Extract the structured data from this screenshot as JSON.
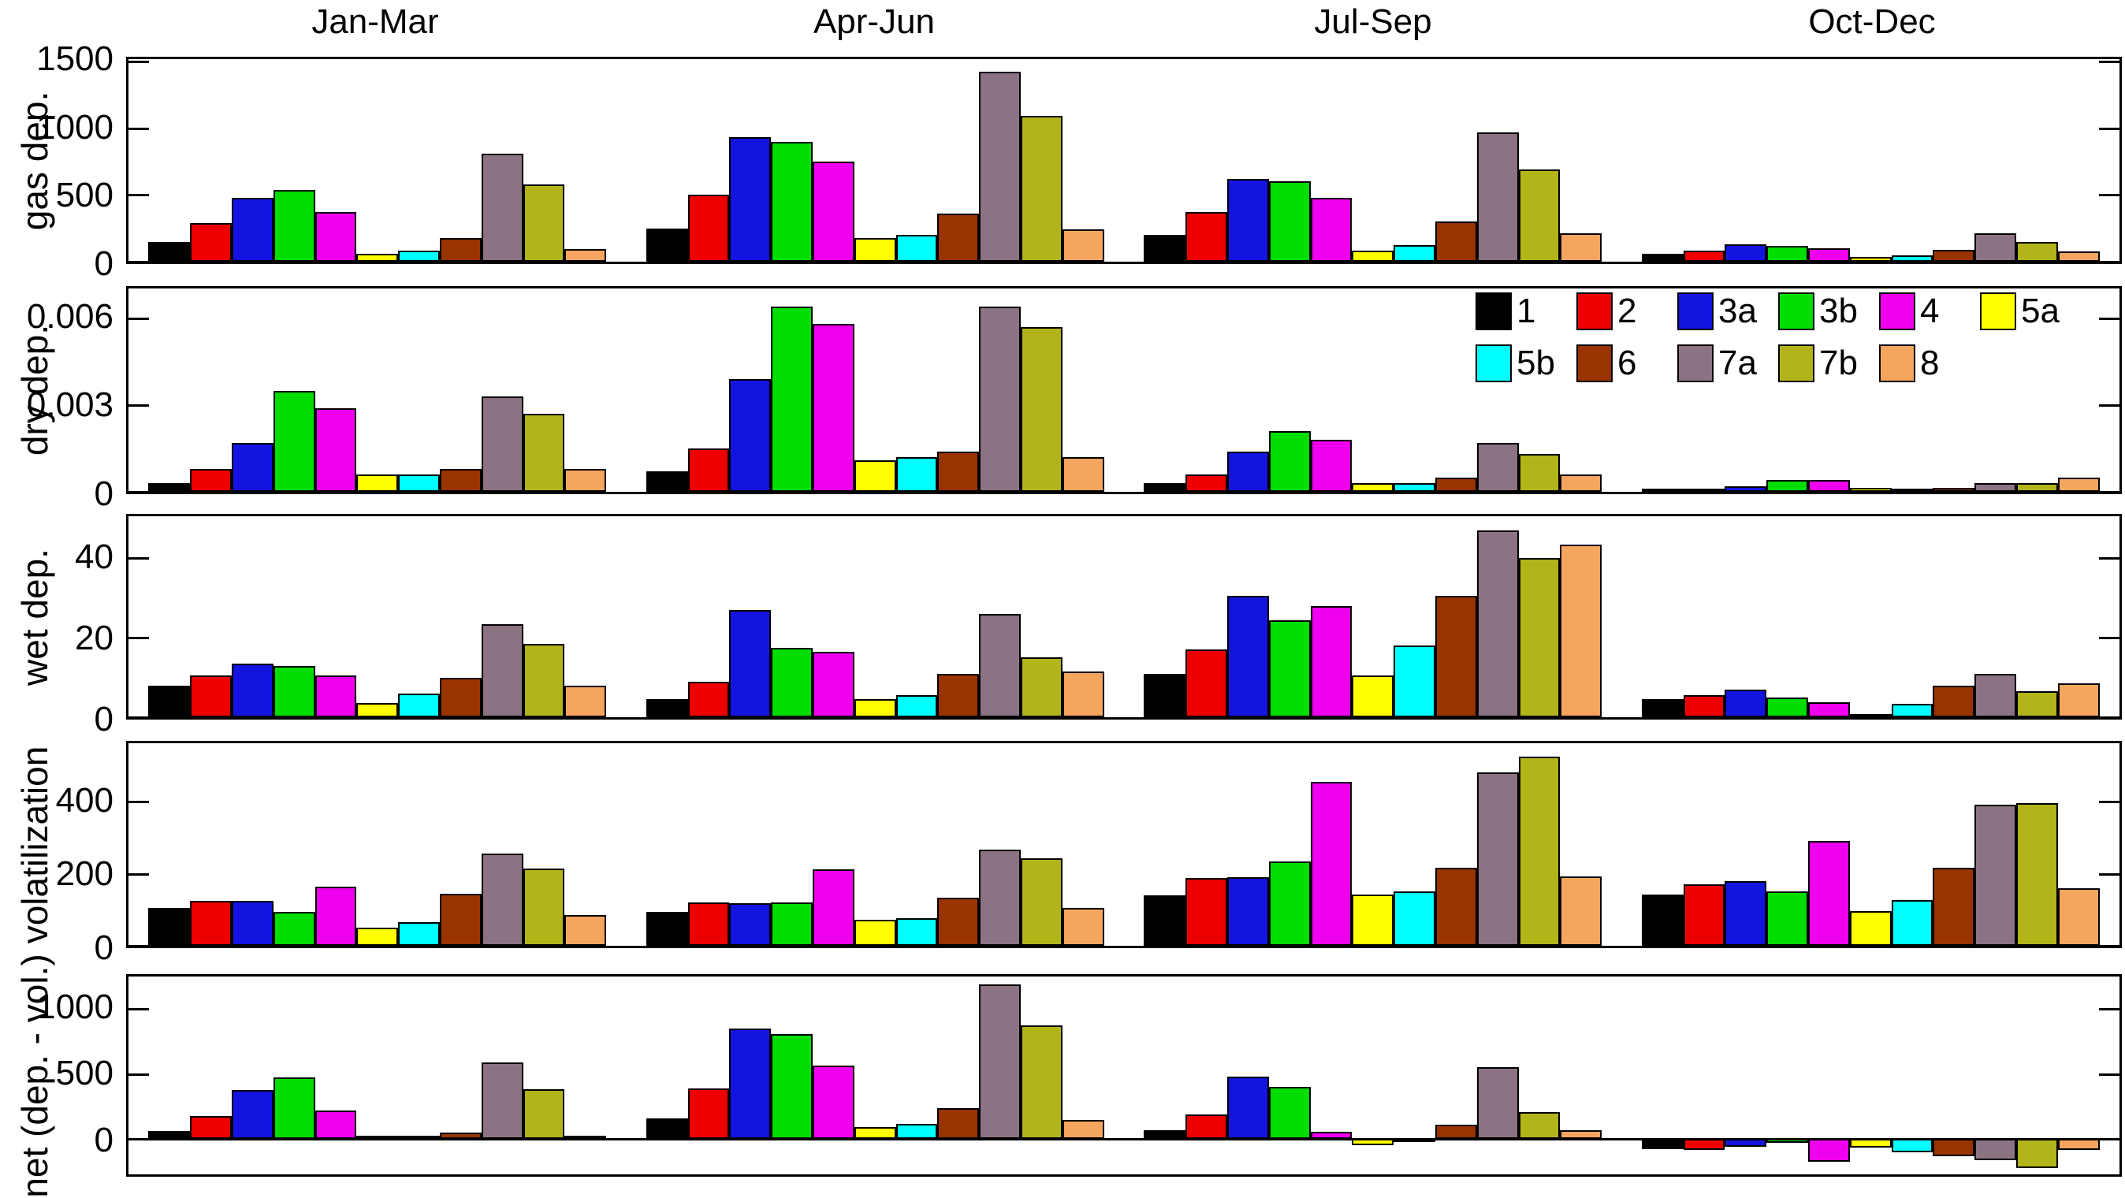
{
  "figure": {
    "quarters": [
      "Jan-Mar",
      "Apr-Jun",
      "Jul-Sep",
      "Oct-Dec"
    ],
    "series_colors": {
      "1": "#000000",
      "2": "#ee0000",
      "3a": "#1414e0",
      "3b": "#00dd00",
      "4": "#ee00ee",
      "5a": "#ffff00",
      "5b": "#00ffff",
      "6": "#993300",
      "7a": "#8c7383",
      "7b": "#b3b31a",
      "8": "#f6a55f"
    },
    "legend": {
      "rows": [
        [
          "1",
          "2",
          "3a",
          "3b",
          "4",
          "5a"
        ],
        [
          "5b",
          "6",
          "7a",
          "7b",
          "8"
        ]
      ]
    }
  },
  "chart_data": [
    {
      "type": "bar",
      "ylabel": "gas dep.",
      "ylim": [
        0,
        1517
      ],
      "yticks": [
        0,
        500,
        1000,
        1500
      ],
      "ytick_labels": [
        "0",
        "500",
        "1000",
        "1500"
      ],
      "categories": [
        "Jan-Mar",
        "Apr-Jun",
        "Jul-Sep",
        "Oct-Dec"
      ],
      "series": [
        {
          "name": "1",
          "color": "#000000",
          "values": [
            150,
            250,
            200,
            60
          ]
        },
        {
          "name": "2",
          "color": "#ee0000",
          "values": [
            290,
            500,
            370,
            85
          ]
        },
        {
          "name": "3a",
          "color": "#1414e0",
          "values": [
            480,
            930,
            620,
            130
          ]
        },
        {
          "name": "3b",
          "color": "#00dd00",
          "values": [
            540,
            900,
            600,
            120
          ]
        },
        {
          "name": "4",
          "color": "#ee00ee",
          "values": [
            370,
            750,
            480,
            100
          ]
        },
        {
          "name": "5a",
          "color": "#ffff00",
          "values": [
            60,
            175,
            80,
            35
          ]
        },
        {
          "name": "5b",
          "color": "#00ffff",
          "values": [
            80,
            200,
            125,
            45
          ]
        },
        {
          "name": "6",
          "color": "#993300",
          "values": [
            180,
            360,
            300,
            90
          ]
        },
        {
          "name": "7a",
          "color": "#8c7383",
          "values": [
            810,
            1420,
            970,
            210
          ]
        },
        {
          "name": "7b",
          "color": "#b3b31a",
          "values": [
            580,
            1090,
            690,
            150
          ]
        },
        {
          "name": "8",
          "color": "#f6a55f",
          "values": [
            95,
            240,
            210,
            75
          ]
        }
      ]
    },
    {
      "type": "bar",
      "ylabel": "dry dep.",
      "ylim": [
        0,
        0.00703
      ],
      "yticks": [
        0,
        0.003,
        0.006
      ],
      "ytick_labels": [
        "0",
        "0.003",
        "0.006"
      ],
      "categories": [
        "Jan-Mar",
        "Apr-Jun",
        "Jul-Sep",
        "Oct-Dec"
      ],
      "series": [
        {
          "name": "1",
          "color": "#000000",
          "values": [
            0.0003,
            0.0007,
            0.0003,
            0.0001
          ]
        },
        {
          "name": "2",
          "color": "#ee0000",
          "values": [
            0.0008,
            0.0015,
            0.0006,
            0.0001
          ]
        },
        {
          "name": "3a",
          "color": "#1414e0",
          "values": [
            0.0017,
            0.0039,
            0.0014,
            0.0002
          ]
        },
        {
          "name": "3b",
          "color": "#00dd00",
          "values": [
            0.0035,
            0.0064,
            0.0021,
            0.0004
          ]
        },
        {
          "name": "4",
          "color": "#ee00ee",
          "values": [
            0.0029,
            0.0058,
            0.0018,
            0.0004
          ]
        },
        {
          "name": "5a",
          "color": "#ffff00",
          "values": [
            0.0006,
            0.0011,
            0.0003,
            0.00015
          ]
        },
        {
          "name": "5b",
          "color": "#00ffff",
          "values": [
            0.0006,
            0.0012,
            0.0003,
            0.0001
          ]
        },
        {
          "name": "6",
          "color": "#993300",
          "values": [
            0.0008,
            0.0014,
            0.0005,
            0.00015
          ]
        },
        {
          "name": "7a",
          "color": "#8c7383",
          "values": [
            0.0033,
            0.0064,
            0.0017,
            0.0003
          ]
        },
        {
          "name": "7b",
          "color": "#b3b31a",
          "values": [
            0.0027,
            0.0057,
            0.0013,
            0.0003
          ]
        },
        {
          "name": "8",
          "color": "#f6a55f",
          "values": [
            0.0008,
            0.0012,
            0.0006,
            0.0005
          ]
        }
      ]
    },
    {
      "type": "bar",
      "ylabel": "wet dep.",
      "ylim": [
        0,
        50.6
      ],
      "yticks": [
        0,
        20,
        40
      ],
      "ytick_labels": [
        "0",
        "20",
        "40"
      ],
      "categories": [
        "Jan-Mar",
        "Apr-Jun",
        "Jul-Sep",
        "Oct-Dec"
      ],
      "series": [
        {
          "name": "1",
          "color": "#000000",
          "values": [
            8,
            4.5,
            11,
            4.5
          ]
        },
        {
          "name": "2",
          "color": "#ee0000",
          "values": [
            10.5,
            9,
            17,
            5.5
          ]
        },
        {
          "name": "3a",
          "color": "#1414e0",
          "values": [
            13.5,
            27,
            30.5,
            7
          ]
        },
        {
          "name": "3b",
          "color": "#00dd00",
          "values": [
            13,
            17.5,
            24.5,
            5
          ]
        },
        {
          "name": "4",
          "color": "#ee00ee",
          "values": [
            10.5,
            16.5,
            28,
            3.7
          ]
        },
        {
          "name": "5a",
          "color": "#ffff00",
          "values": [
            3.5,
            4.5,
            10.5,
            0.8
          ]
        },
        {
          "name": "5b",
          "color": "#00ffff",
          "values": [
            6,
            5.5,
            18,
            3.3
          ]
        },
        {
          "name": "6",
          "color": "#993300",
          "values": [
            10,
            11,
            30.5,
            8
          ]
        },
        {
          "name": "7a",
          "color": "#8c7383",
          "values": [
            23.5,
            26,
            47,
            11
          ]
        },
        {
          "name": "7b",
          "color": "#b3b31a",
          "values": [
            18.5,
            15,
            40,
            6.5
          ]
        },
        {
          "name": "8",
          "color": "#f6a55f",
          "values": [
            8,
            11.5,
            43.5,
            8.5
          ]
        }
      ]
    },
    {
      "type": "bar",
      "ylabel": "volatilization",
      "ylim": [
        0,
        562
      ],
      "yticks": [
        0,
        200,
        400
      ],
      "ytick_labels": [
        "0",
        "200",
        "400"
      ],
      "categories": [
        "Jan-Mar",
        "Apr-Jun",
        "Jul-Sep",
        "Oct-Dec"
      ],
      "series": [
        {
          "name": "1",
          "color": "#000000",
          "values": [
            105,
            95,
            140,
            142
          ]
        },
        {
          "name": "2",
          "color": "#ee0000",
          "values": [
            125,
            120,
            188,
            170
          ]
        },
        {
          "name": "3a",
          "color": "#1414e0",
          "values": [
            125,
            118,
            190,
            180
          ]
        },
        {
          "name": "3b",
          "color": "#00dd00",
          "values": [
            95,
            120,
            233,
            150
          ]
        },
        {
          "name": "4",
          "color": "#ee00ee",
          "values": [
            165,
            212,
            455,
            290
          ]
        },
        {
          "name": "5a",
          "color": "#ffff00",
          "values": [
            50,
            73,
            142,
            96
          ]
        },
        {
          "name": "5b",
          "color": "#00ffff",
          "values": [
            65,
            77,
            152,
            126
          ]
        },
        {
          "name": "6",
          "color": "#993300",
          "values": [
            145,
            133,
            216,
            216
          ]
        },
        {
          "name": "7a",
          "color": "#8c7383",
          "values": [
            255,
            267,
            482,
            392
          ]
        },
        {
          "name": "7b",
          "color": "#b3b31a",
          "values": [
            215,
            243,
            525,
            395
          ]
        },
        {
          "name": "8",
          "color": "#f6a55f",
          "values": [
            85,
            105,
            192,
            160
          ]
        }
      ]
    },
    {
      "type": "bar",
      "ylabel": "net (dep. - vol.)",
      "ylim": [
        -272,
        1248
      ],
      "yticks": [
        0,
        500,
        1000
      ],
      "ytick_labels": [
        "0",
        "500",
        "1000"
      ],
      "categories": [
        "Jan-Mar",
        "Apr-Jun",
        "Jul-Sep",
        "Oct-Dec"
      ],
      "series": [
        {
          "name": "1",
          "color": "#000000",
          "values": [
            60,
            160,
            65,
            -77
          ]
        },
        {
          "name": "2",
          "color": "#ee0000",
          "values": [
            175,
            390,
            190,
            -85
          ]
        },
        {
          "name": "3a",
          "color": "#1414e0",
          "values": [
            375,
            850,
            480,
            -58
          ]
        },
        {
          "name": "3b",
          "color": "#00dd00",
          "values": [
            470,
            805,
            400,
            -30
          ]
        },
        {
          "name": "4",
          "color": "#ee00ee",
          "values": [
            220,
            565,
            55,
            -178
          ]
        },
        {
          "name": "5a",
          "color": "#ffff00",
          "values": [
            12,
            90,
            -45,
            -65
          ]
        },
        {
          "name": "5b",
          "color": "#00ffff",
          "values": [
            15,
            118,
            -15,
            -105
          ]
        },
        {
          "name": "6",
          "color": "#993300",
          "values": [
            50,
            235,
            112,
            -135
          ]
        },
        {
          "name": "7a",
          "color": "#8c7383",
          "values": [
            590,
            1190,
            550,
            -165
          ]
        },
        {
          "name": "7b",
          "color": "#b3b31a",
          "values": [
            385,
            870,
            205,
            -225
          ]
        },
        {
          "name": "8",
          "color": "#f6a55f",
          "values": [
            8,
            145,
            65,
            -82
          ]
        }
      ]
    }
  ]
}
